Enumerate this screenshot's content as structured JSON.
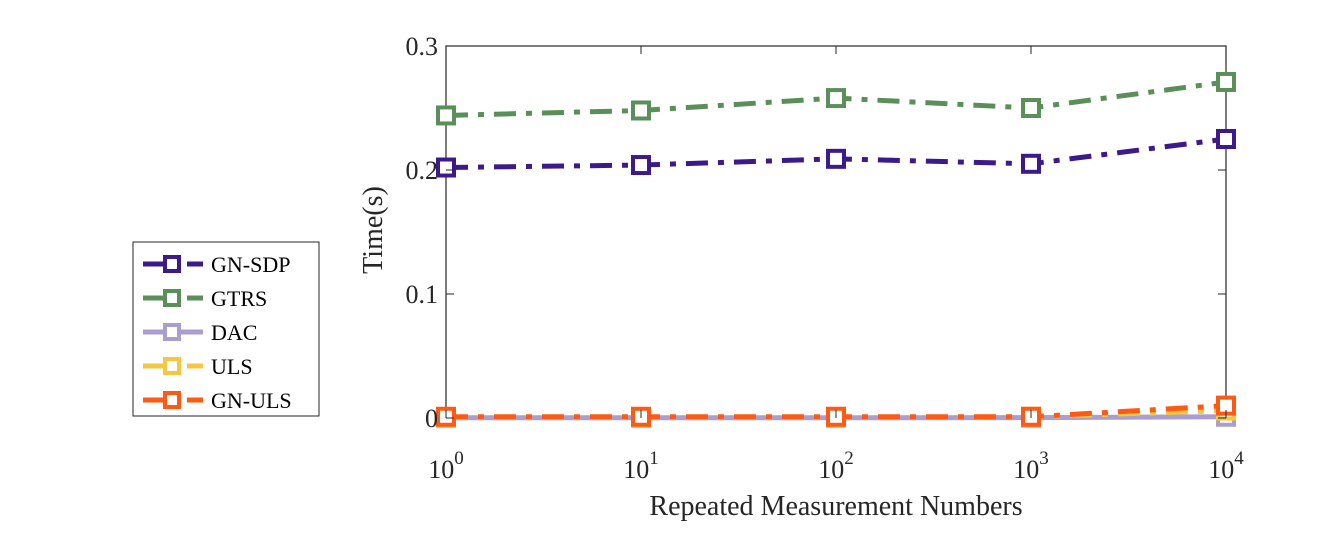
{
  "chart_data": {
    "type": "line",
    "xscale": "log",
    "x": [
      1,
      10,
      100,
      1000,
      10000
    ],
    "x_tick_labels": [
      {
        "base": "10",
        "exp": "0"
      },
      {
        "base": "10",
        "exp": "1"
      },
      {
        "base": "10",
        "exp": "2"
      },
      {
        "base": "10",
        "exp": "3"
      },
      {
        "base": "10",
        "exp": "4"
      }
    ],
    "y_ticks": [
      0,
      0.1,
      0.2,
      0.3
    ],
    "y_tick_labels": [
      "0",
      "0.1",
      "0.2",
      "0.3"
    ],
    "ylim": [
      0,
      0.3
    ],
    "xlabel": "Repeated Measurement Numbers",
    "ylabel": "Time(s)",
    "grid": false,
    "legend_position": "left-outside",
    "series": [
      {
        "name": "GN-SDP",
        "color": "#3d1a8c",
        "dash": "dashdot",
        "marker": "square",
        "values": [
          0.202,
          0.204,
          0.209,
          0.205,
          0.225
        ]
      },
      {
        "name": "GTRS",
        "color": "#5a8f5a",
        "dash": "dashdot",
        "marker": "square",
        "values": [
          0.244,
          0.248,
          0.258,
          0.25,
          0.271
        ]
      },
      {
        "name": "DAC",
        "color": "#a99ed0",
        "dash": "solid",
        "marker": "square",
        "values": [
          0.0002,
          0.0002,
          0.0002,
          0.0003,
          0.001
        ]
      },
      {
        "name": "ULS",
        "color": "#f4c642",
        "dash": "dashdot",
        "marker": "square",
        "values": [
          0.0005,
          0.0005,
          0.0005,
          0.001,
          0.006
        ]
      },
      {
        "name": "GN-ULS",
        "color": "#ff5a14",
        "dash": "dashdot",
        "marker": "square",
        "values": [
          0.001,
          0.001,
          0.001,
          0.001,
          0.01
        ]
      }
    ]
  }
}
